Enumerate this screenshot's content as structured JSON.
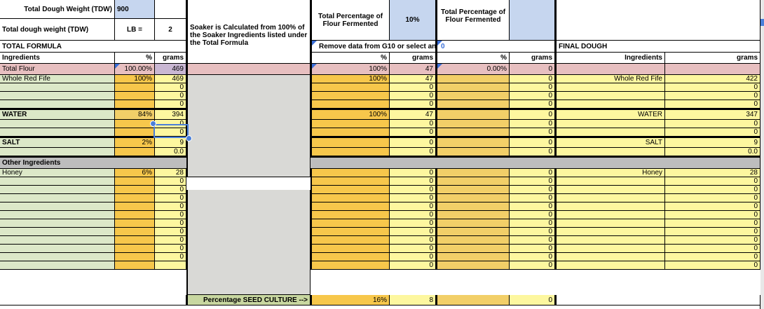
{
  "top": {
    "tdw_label": "Total Dough Weight (TDW)",
    "tdw_value": "900",
    "tdw_label2": "Total dough weight (TDW)",
    "lb_label": "LB =",
    "lb_value": "2",
    "soaker_note": "Soaker is Calculated from 100% of the Soaker Ingredients listed under the Total Formula",
    "pct_fermented_label": "Total Percentage of Flour Fermented",
    "pct_fermented_value": "10%",
    "pct_fermented_label2": "Total Percentage of Flour Fermented",
    "pct_fermented_value2": ""
  },
  "sections": {
    "total_formula": "TOTAL FORMULA",
    "remove_note": "Remove data from G10 or select an",
    "zero_marker": "0",
    "final_dough": "FINAL DOUGH"
  },
  "headers": {
    "ingredients": "Ingredients",
    "pct": "%",
    "grams": "grams"
  },
  "total_flour": {
    "label": "Total Flour",
    "pct": "100.00%",
    "grams": "469",
    "pref_pct": "100%",
    "pref_grams": "47",
    "pref2_pct": "0.00%",
    "pref2_grams": "0"
  },
  "rows": [
    {
      "name": "Whole Red Fife",
      "pct": "100%",
      "grams": "469",
      "p1pct": "100%",
      "p1g": "47",
      "p2pct": "",
      "p2g": "0",
      "fname": "Whole Red Fife",
      "fg": "422"
    },
    {
      "name": "",
      "pct": "",
      "grams": "0",
      "p1pct": "",
      "p1g": "0",
      "p2pct": "",
      "p2g": "0",
      "fname": "",
      "fg": "0"
    },
    {
      "name": "",
      "pct": "",
      "grams": "0",
      "p1pct": "",
      "p1g": "0",
      "p2pct": "",
      "p2g": "0",
      "fname": "",
      "fg": "0"
    },
    {
      "name": "",
      "pct": "",
      "grams": "0",
      "p1pct": "",
      "p1g": "0",
      "p2pct": "",
      "p2g": "0",
      "fname": "",
      "fg": "0"
    },
    {
      "name": "WATER",
      "pct": "84%",
      "grams": "394",
      "p1pct": "100%",
      "p1g": "47",
      "p2pct": "",
      "p2g": "0",
      "fname": "WATER",
      "fg": "347"
    },
    {
      "name": "",
      "pct": "",
      "grams": "0",
      "p1pct": "",
      "p1g": "0",
      "p2pct": "",
      "p2g": "0",
      "fname": "",
      "fg": "0"
    },
    {
      "name": "",
      "pct": "",
      "grams": "0",
      "p1pct": "",
      "p1g": "0",
      "p2pct": "",
      "p2g": "0",
      "fname": "",
      "fg": "0"
    },
    {
      "name": "SALT",
      "pct": "2%",
      "grams": "9",
      "p1pct": "",
      "p1g": "0",
      "p2pct": "",
      "p2g": "0",
      "fname": "SALT",
      "fg": "9"
    },
    {
      "name": "",
      "pct": "",
      "grams": "0.0",
      "p1pct": "",
      "p1g": "0",
      "p2pct": "",
      "p2g": "0",
      "fname": "",
      "fg": "0.0"
    },
    {
      "section": "Other Ingredients"
    },
    {
      "name": "Honey",
      "pct": "6%",
      "grams": "28",
      "p1pct": "",
      "p1g": "0",
      "p2pct": "",
      "p2g": "0",
      "fname": "Honey",
      "fg": "28"
    },
    {
      "name": "",
      "pct": "",
      "grams": "0",
      "p1pct": "",
      "p1g": "0",
      "p2pct": "",
      "p2g": "0",
      "fname": "",
      "fg": "0"
    },
    {
      "name": "",
      "pct": "",
      "grams": "0",
      "p1pct": "",
      "p1g": "0",
      "p2pct": "",
      "p2g": "0",
      "fname": "",
      "fg": "0"
    },
    {
      "name": "",
      "pct": "",
      "grams": "0",
      "p1pct": "",
      "p1g": "0",
      "p2pct": "",
      "p2g": "0",
      "fname": "",
      "fg": "0"
    },
    {
      "name": "",
      "pct": "",
      "grams": "0",
      "p1pct": "",
      "p1g": "0",
      "p2pct": "",
      "p2g": "0",
      "fname": "",
      "fg": "0"
    },
    {
      "name": "",
      "pct": "",
      "grams": "0",
      "p1pct": "",
      "p1g": "0",
      "p2pct": "",
      "p2g": "0",
      "fname": "",
      "fg": "0"
    },
    {
      "name": "",
      "pct": "",
      "grams": "0",
      "p1pct": "",
      "p1g": "0",
      "p2pct": "",
      "p2g": "0",
      "fname": "",
      "fg": "0"
    },
    {
      "name": "",
      "pct": "",
      "grams": "0",
      "p1pct": "",
      "p1g": "0",
      "p2pct": "",
      "p2g": "0",
      "fname": "",
      "fg": "0"
    },
    {
      "name": "",
      "pct": "",
      "grams": "0",
      "p1pct": "",
      "p1g": "0",
      "p2pct": "",
      "p2g": "0",
      "fname": "",
      "fg": "0"
    },
    {
      "name": "",
      "pct": "",
      "grams": "0",
      "p1pct": "",
      "p1g": "0",
      "p2pct": "",
      "p2g": "0",
      "fname": "",
      "fg": "0"
    },
    {
      "name": "",
      "pct": "",
      "grams": "0",
      "p1pct": "",
      "p1g": "0",
      "p2pct": "",
      "p2g": "0",
      "fname": "",
      "fg": "0"
    },
    {
      "name": "",
      "pct": "",
      "grams": "",
      "p1pct": "",
      "p1g": "0",
      "p2pct": "",
      "p2g": "0",
      "fname": "",
      "fg": "0"
    }
  ],
  "seed": {
    "label": "Percentage SEED CULTURE  -->",
    "pct": "16%",
    "grams": "8",
    "p2g": "0"
  },
  "footer_text": "",
  "selected_cell": "394",
  "colors": {
    "ingredient_green": "#dce8c8",
    "percent_orange": "#f7c74b",
    "grams_yellow": "#fdf79f",
    "soaker_gray": "#d9d9d6",
    "total_flour_pink": "#e7bfc0",
    "input_blue": "#c6d6ef",
    "section_gray": "#bdbdbd",
    "selection_blue": "#4a7fd9"
  }
}
